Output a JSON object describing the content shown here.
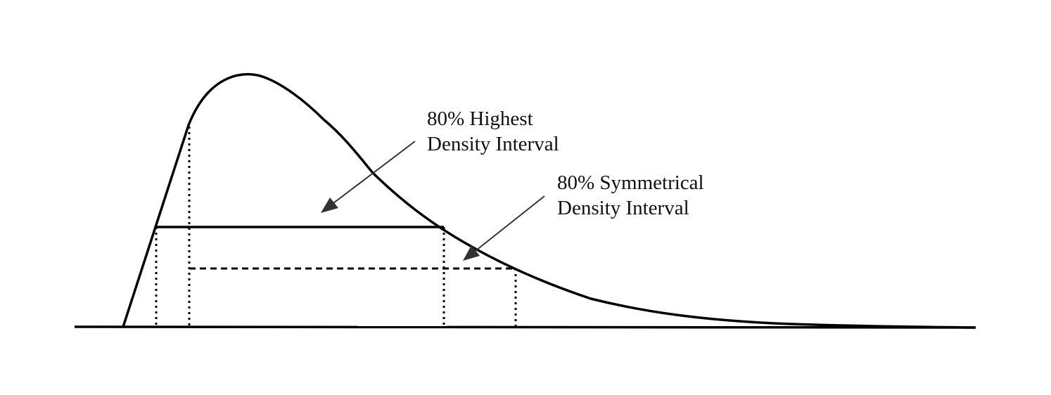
{
  "annotations": {
    "hdi": {
      "line1": "80% Highest",
      "line2": "Density Interval"
    },
    "symmetric": {
      "line1": "80% Symmetrical",
      "line2": "Density Interval"
    }
  },
  "colors": {
    "ink": "#000000",
    "arrow": "#333333",
    "background": "#ffffff"
  }
}
